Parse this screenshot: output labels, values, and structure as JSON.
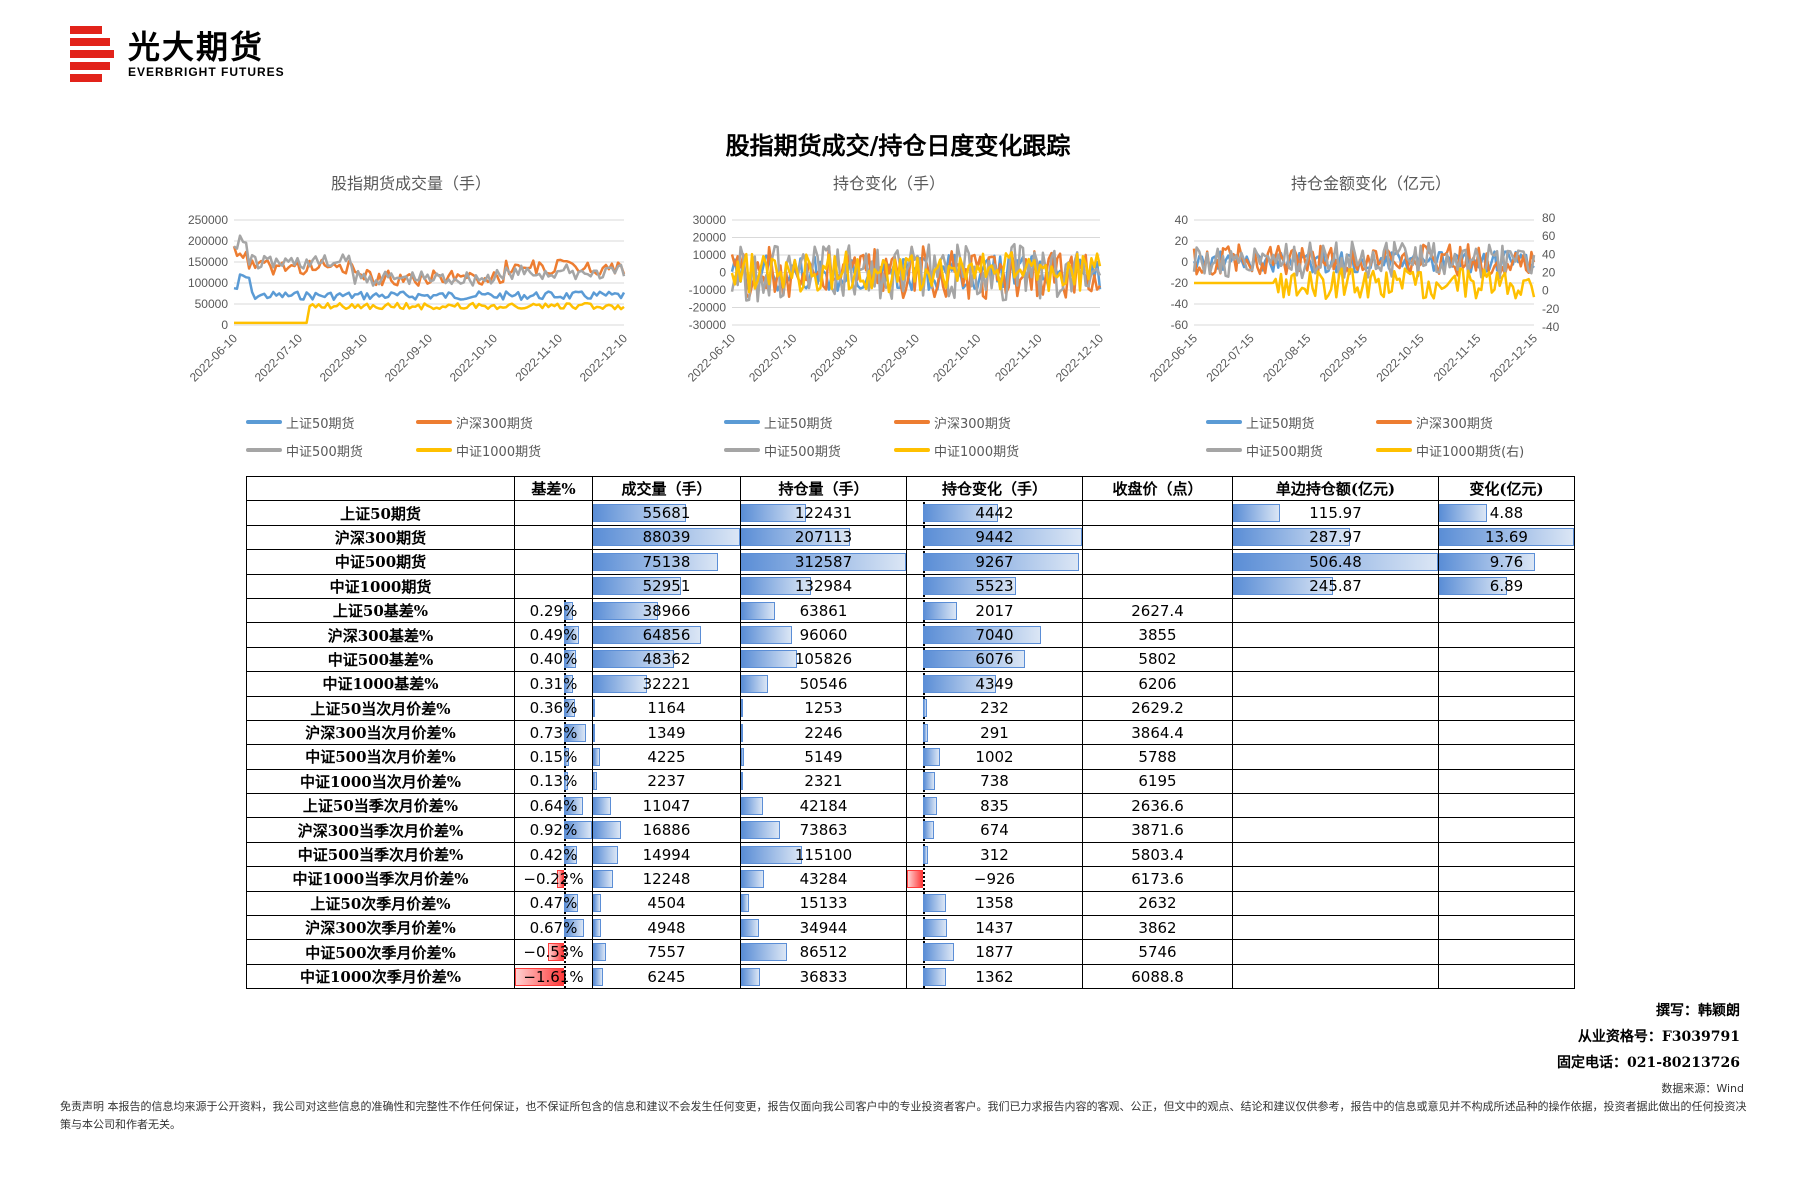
{
  "brand": {
    "cn": "光大期货",
    "en": "EVERBRIGHT FUTURES",
    "color": "#e2231a"
  },
  "title": "股指期货成交/持仓日度变化跟踪",
  "charts": [
    {
      "title": "股指期货成交量（手）",
      "y_ticks": [
        "250000",
        "200000",
        "150000",
        "100000",
        "50000",
        "0"
      ],
      "x_ticks": [
        "2022-06-10",
        "2022-07-10",
        "2022-08-10",
        "2022-09-10",
        "2022-10-10",
        "2022-11-10",
        "2022-12-10"
      ],
      "legend": [
        "上证50期货",
        "沪深300期货",
        "中证500期货",
        "中证1000期货"
      ]
    },
    {
      "title": "持仓变化（手）",
      "y_ticks": [
        "30000",
        "20000",
        "10000",
        "0",
        "-10000",
        "-20000",
        "-30000"
      ],
      "x_ticks": [
        "2022-06-10",
        "2022-07-10",
        "2022-08-10",
        "2022-09-10",
        "2022-10-10",
        "2022-11-10",
        "2022-12-10"
      ],
      "legend": [
        "上证50期货",
        "沪深300期货",
        "中证500期货",
        "中证1000期货"
      ]
    },
    {
      "title": "持仓金额变化（亿元）",
      "y_ticks": [
        "40",
        "20",
        "0",
        "-20",
        "-40",
        "-60"
      ],
      "y2_ticks": [
        "80",
        "60",
        "40",
        "20",
        "0",
        "-20",
        "-40"
      ],
      "x_ticks": [
        "2022-06-15",
        "2022-07-15",
        "2022-08-15",
        "2022-09-15",
        "2022-10-15",
        "2022-11-15",
        "2022-12-15"
      ],
      "legend": [
        "上证50期货",
        "沪深300期货",
        "中证500期货",
        "中证1000期货(右)"
      ]
    }
  ],
  "series_colors": [
    "#5b9bd5",
    "#ed7d31",
    "#a5a5a5",
    "#ffc000"
  ],
  "table": {
    "headers": [
      "",
      "基差%",
      "成交量（手）",
      "持仓量（手）",
      "持仓变化（手）",
      "收盘价（点）",
      "单边持仓额(亿元)",
      "变化(亿元)"
    ],
    "rows": [
      [
        "上证50期货",
        "",
        "55681",
        "122431",
        "4442",
        "",
        "115.97",
        "4.88"
      ],
      [
        "沪深300期货",
        "",
        "88039",
        "207113",
        "9442",
        "",
        "287.97",
        "13.69"
      ],
      [
        "中证500期货",
        "",
        "75138",
        "312587",
        "9267",
        "",
        "506.48",
        "9.76"
      ],
      [
        "中证1000期货",
        "",
        "52951",
        "132984",
        "5523",
        "",
        "245.87",
        "6.89"
      ],
      [
        "上证50基差%",
        "0.29%",
        "38966",
        "63861",
        "2017",
        "2627.4",
        "",
        ""
      ],
      [
        "沪深300基差%",
        "0.49%",
        "64856",
        "96060",
        "7040",
        "3855",
        "",
        ""
      ],
      [
        "中证500基差%",
        "0.40%",
        "48362",
        "105826",
        "6076",
        "5802",
        "",
        ""
      ],
      [
        "中证1000基差%",
        "0.31%",
        "32221",
        "50546",
        "4349",
        "6206",
        "",
        ""
      ],
      [
        "上证50当次月价差%",
        "0.36%",
        "1164",
        "1253",
        "232",
        "2629.2",
        "",
        ""
      ],
      [
        "沪深300当次月价差%",
        "0.73%",
        "1349",
        "2246",
        "291",
        "3864.4",
        "",
        ""
      ],
      [
        "中证500当次月价差%",
        "0.15%",
        "4225",
        "5149",
        "1002",
        "5788",
        "",
        ""
      ],
      [
        "中证1000当次月价差%",
        "0.13%",
        "2237",
        "2321",
        "738",
        "6195",
        "",
        ""
      ],
      [
        "上证50当季次月价差%",
        "0.64%",
        "11047",
        "42184",
        "835",
        "2636.6",
        "",
        ""
      ],
      [
        "沪深300当季次月价差%",
        "0.92%",
        "16886",
        "73863",
        "674",
        "3871.6",
        "",
        ""
      ],
      [
        "中证500当季次月价差%",
        "0.42%",
        "14994",
        "115100",
        "312",
        "5803.4",
        "",
        ""
      ],
      [
        "中证1000当季次月价差%",
        "−0.22%",
        "12248",
        "43284",
        "−926",
        "6173.6",
        "",
        ""
      ],
      [
        "上证50次季月价差%",
        "0.47%",
        "4504",
        "15133",
        "1358",
        "2632",
        "",
        ""
      ],
      [
        "沪深300次季月价差%",
        "0.67%",
        "4948",
        "34944",
        "1437",
        "3862",
        "",
        ""
      ],
      [
        "中证500次季月价差%",
        "−0.53%",
        "7557",
        "86512",
        "1877",
        "5746",
        "",
        ""
      ],
      [
        "中证1000次季月价差%",
        "−1.61%",
        "6245",
        "36833",
        "1362",
        "6088.8",
        "",
        ""
      ]
    ]
  },
  "author": "撰写：韩颖朗",
  "license": "从业资格号：F3039791",
  "phone": "固定电话：021-80213726",
  "source": "数据来源：Wind",
  "disclaimer": "免责声明    本报告的信息均来源于公开资料，我公司对这些信息的准确性和完整性不作任何保证，也不保证所包含的信息和建议不会发生任何变更，报告仅面向我公司客户中的专业投资者客户。我们已力求报告内容的客观、公正，但文中的观点、结论和建议仅供参考，报告中的信息或意见并不构成所述品种的操作依据，投资者据此做出的任何投资决策与本公司和作者无关。"
}
